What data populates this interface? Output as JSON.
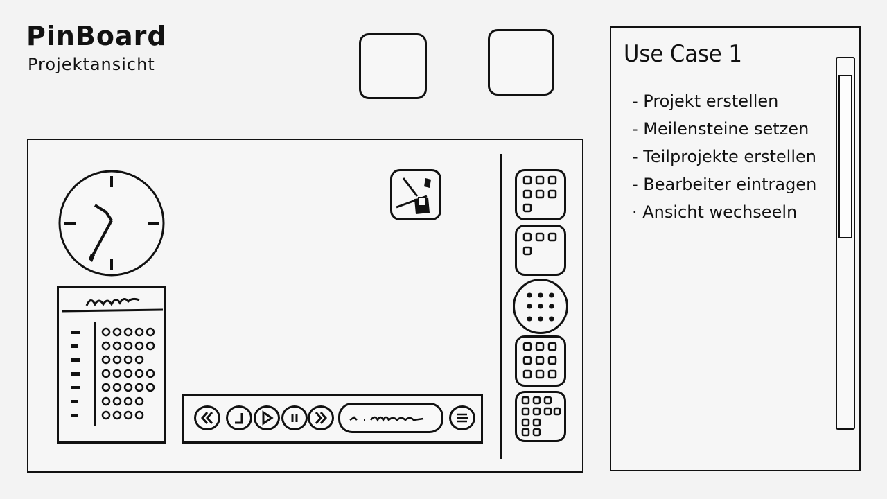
{
  "header": {
    "title": "PinBoard",
    "subtitle": "Projektansicht"
  },
  "top_buttons": [
    "placeholder-button",
    "placeholder-button"
  ],
  "main": {
    "clock": {
      "icon": "clock-icon"
    },
    "tool": {
      "icon": "pin-tool-icon"
    },
    "calendar": {
      "icon": "calendar-icon"
    },
    "media_bar": {
      "controls": [
        "rewind-icon",
        "back-icon",
        "play-icon",
        "pause-icon",
        "fast-forward-icon"
      ],
      "menu_icon": "menu-icon"
    },
    "view_buttons": [
      "grid-view-9",
      "grid-view-4",
      "dots-view",
      "grid-view-9b",
      "grid-view-10"
    ]
  },
  "sidepanel": {
    "title": "Use Case 1",
    "items": [
      "- Projekt erstellen",
      "- Meilensteine setzen",
      "- Teilprojekte erstellen",
      "- Bearbeiter eintragen",
      "· Ansicht wechseeln"
    ]
  }
}
